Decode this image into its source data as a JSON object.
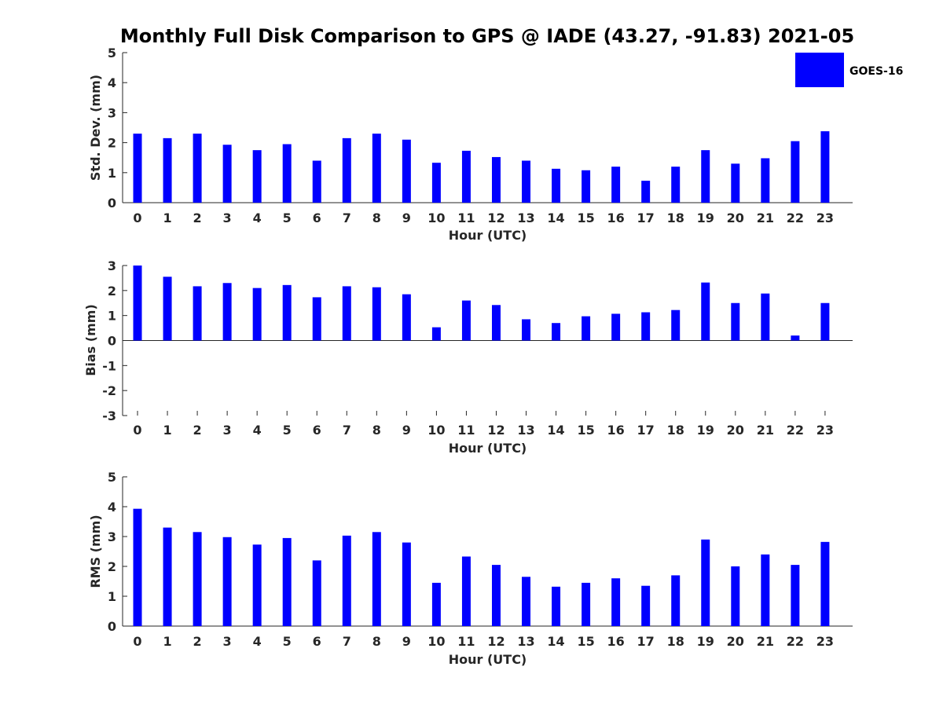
{
  "title": "Monthly Full Disk Comparison to GPS @ IADE (43.27, -91.83) 2021-05",
  "legend": {
    "label": "GOES-16",
    "color": "#0000ff",
    "placement": "top-right"
  },
  "chart_data": [
    {
      "type": "bar",
      "categories": [
        "0",
        "1",
        "2",
        "3",
        "4",
        "5",
        "6",
        "7",
        "8",
        "9",
        "10",
        "11",
        "12",
        "13",
        "14",
        "15",
        "16",
        "17",
        "18",
        "19",
        "20",
        "21",
        "22",
        "23"
      ],
      "series": [
        {
          "name": "GOES-16",
          "values": [
            2.3,
            2.15,
            2.3,
            1.93,
            1.75,
            1.95,
            1.4,
            2.15,
            2.3,
            2.1,
            1.33,
            1.73,
            1.52,
            1.4,
            1.13,
            1.08,
            1.2,
            0.73,
            1.2,
            1.75,
            1.3,
            1.48,
            2.05,
            2.38
          ]
        }
      ],
      "xlabel": "Hour (UTC)",
      "ylabel": "Std. Dev. (mm)",
      "ylim": [
        0,
        5
      ],
      "yticks": [
        "0",
        "1",
        "2",
        "3",
        "4",
        "5"
      ],
      "grid": false
    },
    {
      "type": "bar",
      "categories": [
        "0",
        "1",
        "2",
        "3",
        "4",
        "5",
        "6",
        "7",
        "8",
        "9",
        "10",
        "11",
        "12",
        "13",
        "14",
        "15",
        "16",
        "17",
        "18",
        "19",
        "20",
        "21",
        "22",
        "23"
      ],
      "series": [
        {
          "name": "GOES-16",
          "values": [
            3.0,
            2.55,
            2.17,
            2.3,
            2.1,
            2.22,
            1.73,
            2.17,
            2.13,
            1.85,
            0.53,
            1.6,
            1.42,
            0.85,
            0.7,
            0.97,
            1.07,
            1.13,
            1.22,
            2.32,
            1.5,
            1.88,
            0.2,
            1.5
          ]
        }
      ],
      "xlabel": "Hour (UTC)",
      "ylabel": "Bias (mm)",
      "ylim": [
        -3,
        3
      ],
      "yticks": [
        "-3",
        "-2",
        "-1",
        "0",
        "1",
        "2",
        "3"
      ],
      "grid": false
    },
    {
      "type": "bar",
      "categories": [
        "0",
        "1",
        "2",
        "3",
        "4",
        "5",
        "6",
        "7",
        "8",
        "9",
        "10",
        "11",
        "12",
        "13",
        "14",
        "15",
        "16",
        "17",
        "18",
        "19",
        "20",
        "21",
        "22",
        "23"
      ],
      "series": [
        {
          "name": "GOES-16",
          "values": [
            3.93,
            3.3,
            3.15,
            2.98,
            2.73,
            2.95,
            2.2,
            3.03,
            3.15,
            2.8,
            1.45,
            2.33,
            2.05,
            1.65,
            1.32,
            1.45,
            1.6,
            1.35,
            1.7,
            2.9,
            2.0,
            2.4,
            2.05,
            2.82
          ]
        }
      ],
      "xlabel": "Hour (UTC)",
      "ylabel": "RMS (mm)",
      "ylim": [
        0,
        5
      ],
      "yticks": [
        "0",
        "1",
        "2",
        "3",
        "4",
        "5"
      ],
      "grid": false
    }
  ]
}
